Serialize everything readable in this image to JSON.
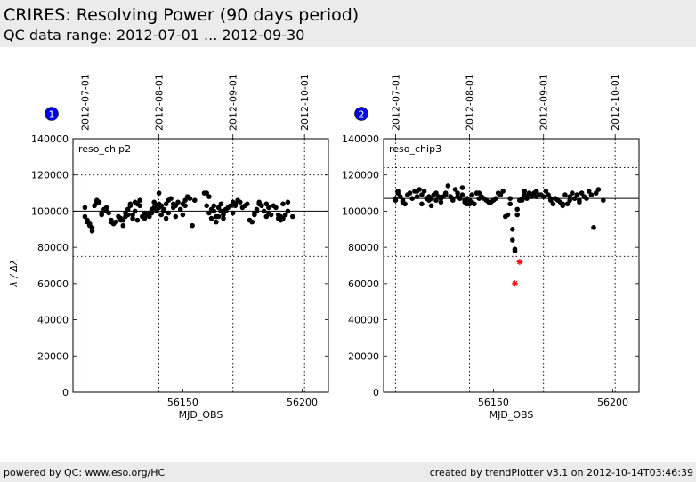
{
  "header": {
    "title": "CRIRES: Resolving Power (90 days period)",
    "subtitle": "QC data range: 2012-07-01 ... 2012-09-30"
  },
  "footer": {
    "left": "powered by QC: www.eso.org/HC",
    "right": "created by trendPlotter v3.1 on 2012-10-14T03:46:39"
  },
  "chart_data": [
    {
      "type": "scatter",
      "badge": "1",
      "panel_label": "reso_chip2",
      "xlabel": "MJD_OBS",
      "ylabel": "λ / Δλ",
      "xlim": [
        56104,
        56211
      ],
      "ylim": [
        0,
        140000
      ],
      "x_ticks": [
        56150,
        56200
      ],
      "y_ticks": [
        0,
        20000,
        40000,
        60000,
        80000,
        100000,
        120000,
        140000
      ],
      "date_ticks": [
        {
          "label": "2012-07-01",
          "mjd": 56109
        },
        {
          "label": "2012-08-01",
          "mjd": 56140
        },
        {
          "label": "2012-09-01",
          "mjd": 56171
        },
        {
          "label": "2012-10-01",
          "mjd": 56201
        }
      ],
      "ref_line": 100000,
      "limit_lines": [
        75000,
        120000
      ],
      "point_color": "#000000",
      "points": [
        [
          56109,
          102000
        ],
        [
          56109,
          97000
        ],
        [
          56110,
          95000
        ],
        [
          56110,
          94000
        ],
        [
          56111,
          93000
        ],
        [
          56111,
          92000
        ],
        [
          56112,
          91000
        ],
        [
          56112,
          89000
        ],
        [
          56113,
          103000
        ],
        [
          56114,
          105000
        ],
        [
          56114,
          106000
        ],
        [
          56115,
          105000
        ],
        [
          56116,
          99000
        ],
        [
          56116,
          98000
        ],
        [
          56117,
          101000
        ],
        [
          56118,
          102000
        ],
        [
          56118,
          100000
        ],
        [
          56119,
          99000
        ],
        [
          56120,
          94000
        ],
        [
          56120,
          95000
        ],
        [
          56121,
          93000
        ],
        [
          56122,
          94000
        ],
        [
          56123,
          97000
        ],
        [
          56124,
          96000
        ],
        [
          56124,
          95000
        ],
        [
          56125,
          92000
        ],
        [
          56125,
          95000
        ],
        [
          56126,
          99000
        ],
        [
          56126,
          97000
        ],
        [
          56127,
          98000
        ],
        [
          56127,
          101000
        ],
        [
          56128,
          104000
        ],
        [
          56128,
          103000
        ],
        [
          56129,
          96000
        ],
        [
          56129,
          98000
        ],
        [
          56130,
          100000
        ],
        [
          56130,
          105000
        ],
        [
          56131,
          104000
        ],
        [
          56131,
          95000
        ],
        [
          56132,
          103000
        ],
        [
          56132,
          106000
        ],
        [
          56133,
          97000
        ],
        [
          56134,
          96000
        ],
        [
          56134,
          99000
        ],
        [
          56135,
          98000
        ],
        [
          56136,
          97000
        ],
        [
          56136,
          99000
        ],
        [
          56137,
          101000
        ],
        [
          56137,
          99000
        ],
        [
          56138,
          102000
        ],
        [
          56138,
          105000
        ],
        [
          56139,
          100000
        ],
        [
          56139,
          103000
        ],
        [
          56140,
          102000
        ],
        [
          56140,
          104000
        ],
        [
          56140,
          110000
        ],
        [
          56141,
          98000
        ],
        [
          56141,
          103000
        ],
        [
          56142,
          100000
        ],
        [
          56142,
          101000
        ],
        [
          56143,
          104000
        ],
        [
          56143,
          96000
        ],
        [
          56144,
          99000
        ],
        [
          56144,
          106000
        ],
        [
          56145,
          107000
        ],
        [
          56146,
          102000
        ],
        [
          56146,
          104000
        ],
        [
          56147,
          97000
        ],
        [
          56147,
          103000
        ],
        [
          56148,
          105000
        ],
        [
          56149,
          101000
        ],
        [
          56150,
          98000
        ],
        [
          56150,
          104000
        ],
        [
          56151,
          103000
        ],
        [
          56151,
          106000
        ],
        [
          56152,
          108000
        ],
        [
          56153,
          107000
        ],
        [
          56154,
          92000
        ],
        [
          56155,
          106000
        ],
        [
          56159,
          110000
        ],
        [
          56160,
          110000
        ],
        [
          56160,
          103000
        ],
        [
          56161,
          108000
        ],
        [
          56161,
          99000
        ],
        [
          56162,
          101000
        ],
        [
          56162,
          96000
        ],
        [
          56163,
          103000
        ],
        [
          56163,
          100000
        ],
        [
          56164,
          97000
        ],
        [
          56164,
          94000
        ],
        [
          56165,
          102000
        ],
        [
          56165,
          97000
        ],
        [
          56166,
          100000
        ],
        [
          56166,
          104000
        ],
        [
          56167,
          98000
        ],
        [
          56167,
          96000
        ],
        [
          56168,
          101000
        ],
        [
          56168,
          100000
        ],
        [
          56169,
          102000
        ],
        [
          56170,
          103000
        ],
        [
          56171,
          105000
        ],
        [
          56171,
          99000
        ],
        [
          56172,
          104000
        ],
        [
          56172,
          103000
        ],
        [
          56173,
          106000
        ],
        [
          56174,
          105000
        ],
        [
          56175,
          102000
        ],
        [
          56176,
          103000
        ],
        [
          56177,
          104000
        ],
        [
          56178,
          95000
        ],
        [
          56179,
          94000
        ],
        [
          56180,
          98000
        ],
        [
          56180,
          99000
        ],
        [
          56181,
          101000
        ],
        [
          56181,
          100000
        ],
        [
          56182,
          104000
        ],
        [
          56182,
          105000
        ],
        [
          56183,
          103000
        ],
        [
          56184,
          100000
        ],
        [
          56185,
          104000
        ],
        [
          56185,
          97000
        ],
        [
          56186,
          99000
        ],
        [
          56186,
          102000
        ],
        [
          56187,
          98000
        ],
        [
          56188,
          103000
        ],
        [
          56189,
          102000
        ],
        [
          56190,
          96000
        ],
        [
          56190,
          98000
        ],
        [
          56191,
          95000
        ],
        [
          56191,
          97000
        ],
        [
          56192,
          104000
        ],
        [
          56192,
          96000
        ],
        [
          56193,
          98000
        ],
        [
          56194,
          100000
        ],
        [
          56194,
          105000
        ],
        [
          56196,
          97000
        ]
      ],
      "outliers": []
    },
    {
      "type": "scatter",
      "badge": "2",
      "panel_label": "reso_chip3",
      "xlabel": "MJD_OBS",
      "ylabel": "",
      "xlim": [
        56104,
        56211
      ],
      "ylim": [
        0,
        140000
      ],
      "x_ticks": [
        56150,
        56200
      ],
      "y_ticks": [
        0,
        20000,
        40000,
        60000,
        80000,
        100000,
        120000,
        140000
      ],
      "date_ticks": [
        {
          "label": "2012-07-01",
          "mjd": 56109
        },
        {
          "label": "2012-08-01",
          "mjd": 56140
        },
        {
          "label": "2012-09-01",
          "mjd": 56171
        },
        {
          "label": "2012-10-01",
          "mjd": 56201
        }
      ],
      "ref_line": 107000,
      "limit_lines": [
        75000,
        124000
      ],
      "point_color": "#000000",
      "outlier_color": "#ff0000",
      "points": [
        [
          56109,
          107000
        ],
        [
          56109,
          106000
        ],
        [
          56110,
          111000
        ],
        [
          56110,
          110000
        ],
        [
          56111,
          108000
        ],
        [
          56112,
          105000
        ],
        [
          56112,
          106000
        ],
        [
          56113,
          104000
        ],
        [
          56114,
          109000
        ],
        [
          56115,
          110000
        ],
        [
          56116,
          107000
        ],
        [
          56117,
          111000
        ],
        [
          56118,
          111000
        ],
        [
          56118,
          108000
        ],
        [
          56119,
          112000
        ],
        [
          56120,
          109000
        ],
        [
          56120,
          104000
        ],
        [
          56121,
          111000
        ],
        [
          56122,
          107000
        ],
        [
          56123,
          108000
        ],
        [
          56123,
          106000
        ],
        [
          56124,
          103000
        ],
        [
          56124,
          107000
        ],
        [
          56125,
          109000
        ],
        [
          56126,
          110000
        ],
        [
          56126,
          106000
        ],
        [
          56127,
          108000
        ],
        [
          56128,
          107000
        ],
        [
          56128,
          105000
        ],
        [
          56129,
          108000
        ],
        [
          56130,
          109000
        ],
        [
          56130,
          110000
        ],
        [
          56131,
          114000
        ],
        [
          56132,
          108000
        ],
        [
          56133,
          106000
        ],
        [
          56133,
          107000
        ],
        [
          56134,
          112000
        ],
        [
          56135,
          110000
        ],
        [
          56135,
          108000
        ],
        [
          56136,
          107000
        ],
        [
          56137,
          113000
        ],
        [
          56137,
          109000
        ],
        [
          56138,
          106000
        ],
        [
          56138,
          105000
        ],
        [
          56139,
          104000
        ],
        [
          56139,
          107000
        ],
        [
          56140,
          104000
        ],
        [
          56140,
          106000
        ],
        [
          56141,
          109000
        ],
        [
          56141,
          105000
        ],
        [
          56142,
          104000
        ],
        [
          56143,
          110000
        ],
        [
          56144,
          110000
        ],
        [
          56144,
          107000
        ],
        [
          56145,
          108000
        ],
        [
          56146,
          107000
        ],
        [
          56147,
          106000
        ],
        [
          56148,
          105000
        ],
        [
          56149,
          105000
        ],
        [
          56150,
          106000
        ],
        [
          56151,
          107000
        ],
        [
          56152,
          110000
        ],
        [
          56153,
          109000
        ],
        [
          56154,
          111000
        ],
        [
          56155,
          97000
        ],
        [
          56156,
          98000
        ],
        [
          56157,
          104000
        ],
        [
          56157,
          107000
        ],
        [
          56158,
          90000
        ],
        [
          56158,
          84000
        ],
        [
          56159,
          78000
        ],
        [
          56159,
          79000
        ],
        [
          56160,
          101000
        ],
        [
          56160,
          98000
        ],
        [
          56161,
          106000
        ],
        [
          56161,
          106000
        ],
        [
          56162,
          107000
        ],
        [
          56162,
          106000
        ],
        [
          56163,
          111000
        ],
        [
          56163,
          109000
        ],
        [
          56164,
          107000
        ],
        [
          56164,
          108000
        ],
        [
          56165,
          110000
        ],
        [
          56166,
          109000
        ],
        [
          56166,
          108000
        ],
        [
          56167,
          110000
        ],
        [
          56168,
          111000
        ],
        [
          56168,
          108000
        ],
        [
          56169,
          109000
        ],
        [
          56170,
          109000
        ],
        [
          56171,
          108000
        ],
        [
          56172,
          111000
        ],
        [
          56173,
          109000
        ],
        [
          56174,
          106000
        ],
        [
          56174,
          107000
        ],
        [
          56175,
          104000
        ],
        [
          56176,
          107000
        ],
        [
          56177,
          106000
        ],
        [
          56178,
          105000
        ],
        [
          56179,
          103000
        ],
        [
          56179,
          104000
        ],
        [
          56180,
          109000
        ],
        [
          56181,
          104000
        ],
        [
          56182,
          106000
        ],
        [
          56182,
          108000
        ],
        [
          56183,
          110000
        ],
        [
          56184,
          107000
        ],
        [
          56185,
          109000
        ],
        [
          56186,
          106000
        ],
        [
          56186,
          105000
        ],
        [
          56187,
          110000
        ],
        [
          56188,
          108000
        ],
        [
          56189,
          107000
        ],
        [
          56190,
          111000
        ],
        [
          56191,
          109000
        ],
        [
          56192,
          91000
        ],
        [
          56193,
          110000
        ],
        [
          56194,
          112000
        ],
        [
          56196,
          106000
        ]
      ],
      "outliers": [
        [
          56159,
          60000
        ],
        [
          56161,
          72000
        ]
      ]
    }
  ]
}
